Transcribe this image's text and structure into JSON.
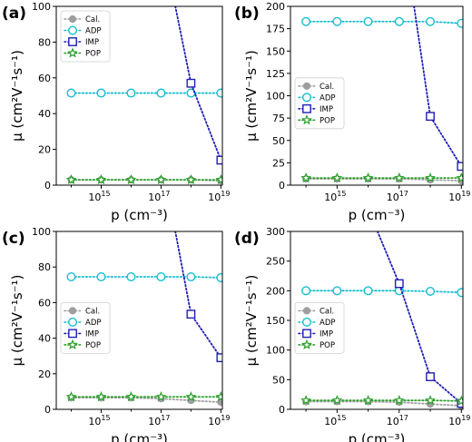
{
  "figure": {
    "colors": {
      "cal": "#9e9e9e",
      "adp": "#17becf",
      "imp": "#1f1fb4",
      "pop": "#2ca02c"
    }
  },
  "chart_data": [
    {
      "panel_label": "(a)",
      "type": "line",
      "xlabel": "p (cm⁻³)",
      "ylabel": "μ (cm²V⁻¹s⁻¹)",
      "x_scale": "log",
      "x_tick_exponents": [
        15,
        17,
        19
      ],
      "ylim": [
        0,
        100
      ],
      "yticks": [
        0,
        20,
        40,
        60,
        80,
        100
      ],
      "legend_position": "upper-left",
      "x": [
        100000000000000.0,
        1000000000000000.0,
        1e+16,
        1e+17,
        1e+18,
        1e+19
      ],
      "series": [
        {
          "name": "Cal.",
          "marker": "circle-filled",
          "color": "#9e9e9e",
          "values": [
            3,
            3,
            3,
            3,
            3,
            2.5
          ]
        },
        {
          "name": "ADP",
          "marker": "circle-open",
          "color": "#17becf",
          "values": [
            51.5,
            51.5,
            51.5,
            51.5,
            51.5,
            51.5
          ]
        },
        {
          "name": "IMP",
          "marker": "square-open",
          "color": "#1f1fb4",
          "x": [
            3e+17,
            1e+18,
            1e+19
          ],
          "values": [
            100,
            57,
            14
          ]
        },
        {
          "name": "POP",
          "marker": "star",
          "color": "#2ca02c",
          "values": [
            3,
            3,
            3,
            3,
            3,
            3
          ]
        }
      ]
    },
    {
      "panel_label": "(b)",
      "type": "line",
      "xlabel": "p (cm⁻³)",
      "ylabel": "μ (cm²V⁻¹s⁻¹)",
      "x_scale": "log",
      "x_tick_exponents": [
        15,
        17,
        19
      ],
      "ylim": [
        0,
        200
      ],
      "yticks": [
        0,
        25,
        50,
        75,
        100,
        125,
        150,
        175,
        200
      ],
      "legend_position": "center-left",
      "x": [
        100000000000000.0,
        1000000000000000.0,
        1e+16,
        1e+17,
        1e+18,
        1e+19
      ],
      "series": [
        {
          "name": "Cal.",
          "marker": "circle-filled",
          "color": "#9e9e9e",
          "values": [
            7,
            7,
            7,
            7,
            6,
            5
          ]
        },
        {
          "name": "ADP",
          "marker": "circle-open",
          "color": "#17becf",
          "values": [
            183,
            183,
            183,
            183,
            183,
            181
          ]
        },
        {
          "name": "IMP",
          "marker": "square-open",
          "color": "#1f1fb4",
          "x": [
            3e+17,
            1e+18,
            1e+19
          ],
          "values": [
            200,
            77,
            21
          ]
        },
        {
          "name": "POP",
          "marker": "star",
          "color": "#2ca02c",
          "values": [
            8,
            8,
            8,
            8,
            8,
            8
          ]
        }
      ]
    },
    {
      "panel_label": "(c)",
      "type": "line",
      "xlabel": "p (cm⁻³)",
      "ylabel": "μ (cm²V⁻¹s⁻¹)",
      "x_scale": "log",
      "x_tick_exponents": [
        15,
        17,
        19
      ],
      "ylim": [
        0,
        100
      ],
      "yticks": [
        0,
        20,
        40,
        60,
        80,
        100
      ],
      "legend_position": "center-left",
      "x": [
        100000000000000.0,
        1000000000000000.0,
        1e+16,
        1e+17,
        1e+18,
        1e+19
      ],
      "series": [
        {
          "name": "Cal.",
          "marker": "circle-filled",
          "color": "#9e9e9e",
          "values": [
            6.5,
            6.5,
            6.5,
            6,
            5,
            4
          ]
        },
        {
          "name": "ADP",
          "marker": "circle-open",
          "color": "#17becf",
          "values": [
            74.5,
            74.5,
            74.5,
            74.5,
            74.5,
            74
          ]
        },
        {
          "name": "IMP",
          "marker": "square-open",
          "color": "#1f1fb4",
          "x": [
            3e+17,
            1e+18,
            1e+19
          ],
          "values": [
            100,
            53.5,
            29
          ]
        },
        {
          "name": "POP",
          "marker": "star",
          "color": "#2ca02c",
          "values": [
            7,
            7,
            7,
            7,
            7,
            7
          ]
        }
      ]
    },
    {
      "panel_label": "(d)",
      "type": "line",
      "xlabel": "p (cm⁻³)",
      "ylabel": "μ (cm²V⁻¹s⁻¹)",
      "x_scale": "log",
      "x_tick_exponents": [
        15,
        17,
        19
      ],
      "ylim": [
        0,
        300
      ],
      "yticks": [
        0,
        50,
        100,
        150,
        200,
        250,
        300
      ],
      "legend_position": "center-left",
      "x": [
        100000000000000.0,
        1000000000000000.0,
        1e+16,
        1e+17,
        1e+18,
        1e+19
      ],
      "series": [
        {
          "name": "Cal.",
          "marker": "circle-filled",
          "color": "#9e9e9e",
          "values": [
            13,
            13,
            13,
            12,
            9,
            6
          ]
        },
        {
          "name": "ADP",
          "marker": "circle-open",
          "color": "#17becf",
          "values": [
            200,
            200,
            200,
            200,
            199,
            197
          ]
        },
        {
          "name": "IMP",
          "marker": "square-open",
          "color": "#1f1fb4",
          "x": [
            2e+16,
            1e+17,
            1e+18,
            1e+19
          ],
          "values": [
            300,
            212,
            55,
            10
          ]
        },
        {
          "name": "POP",
          "marker": "star",
          "color": "#2ca02c",
          "values": [
            15,
            15,
            15,
            15,
            15,
            14
          ]
        }
      ]
    }
  ]
}
